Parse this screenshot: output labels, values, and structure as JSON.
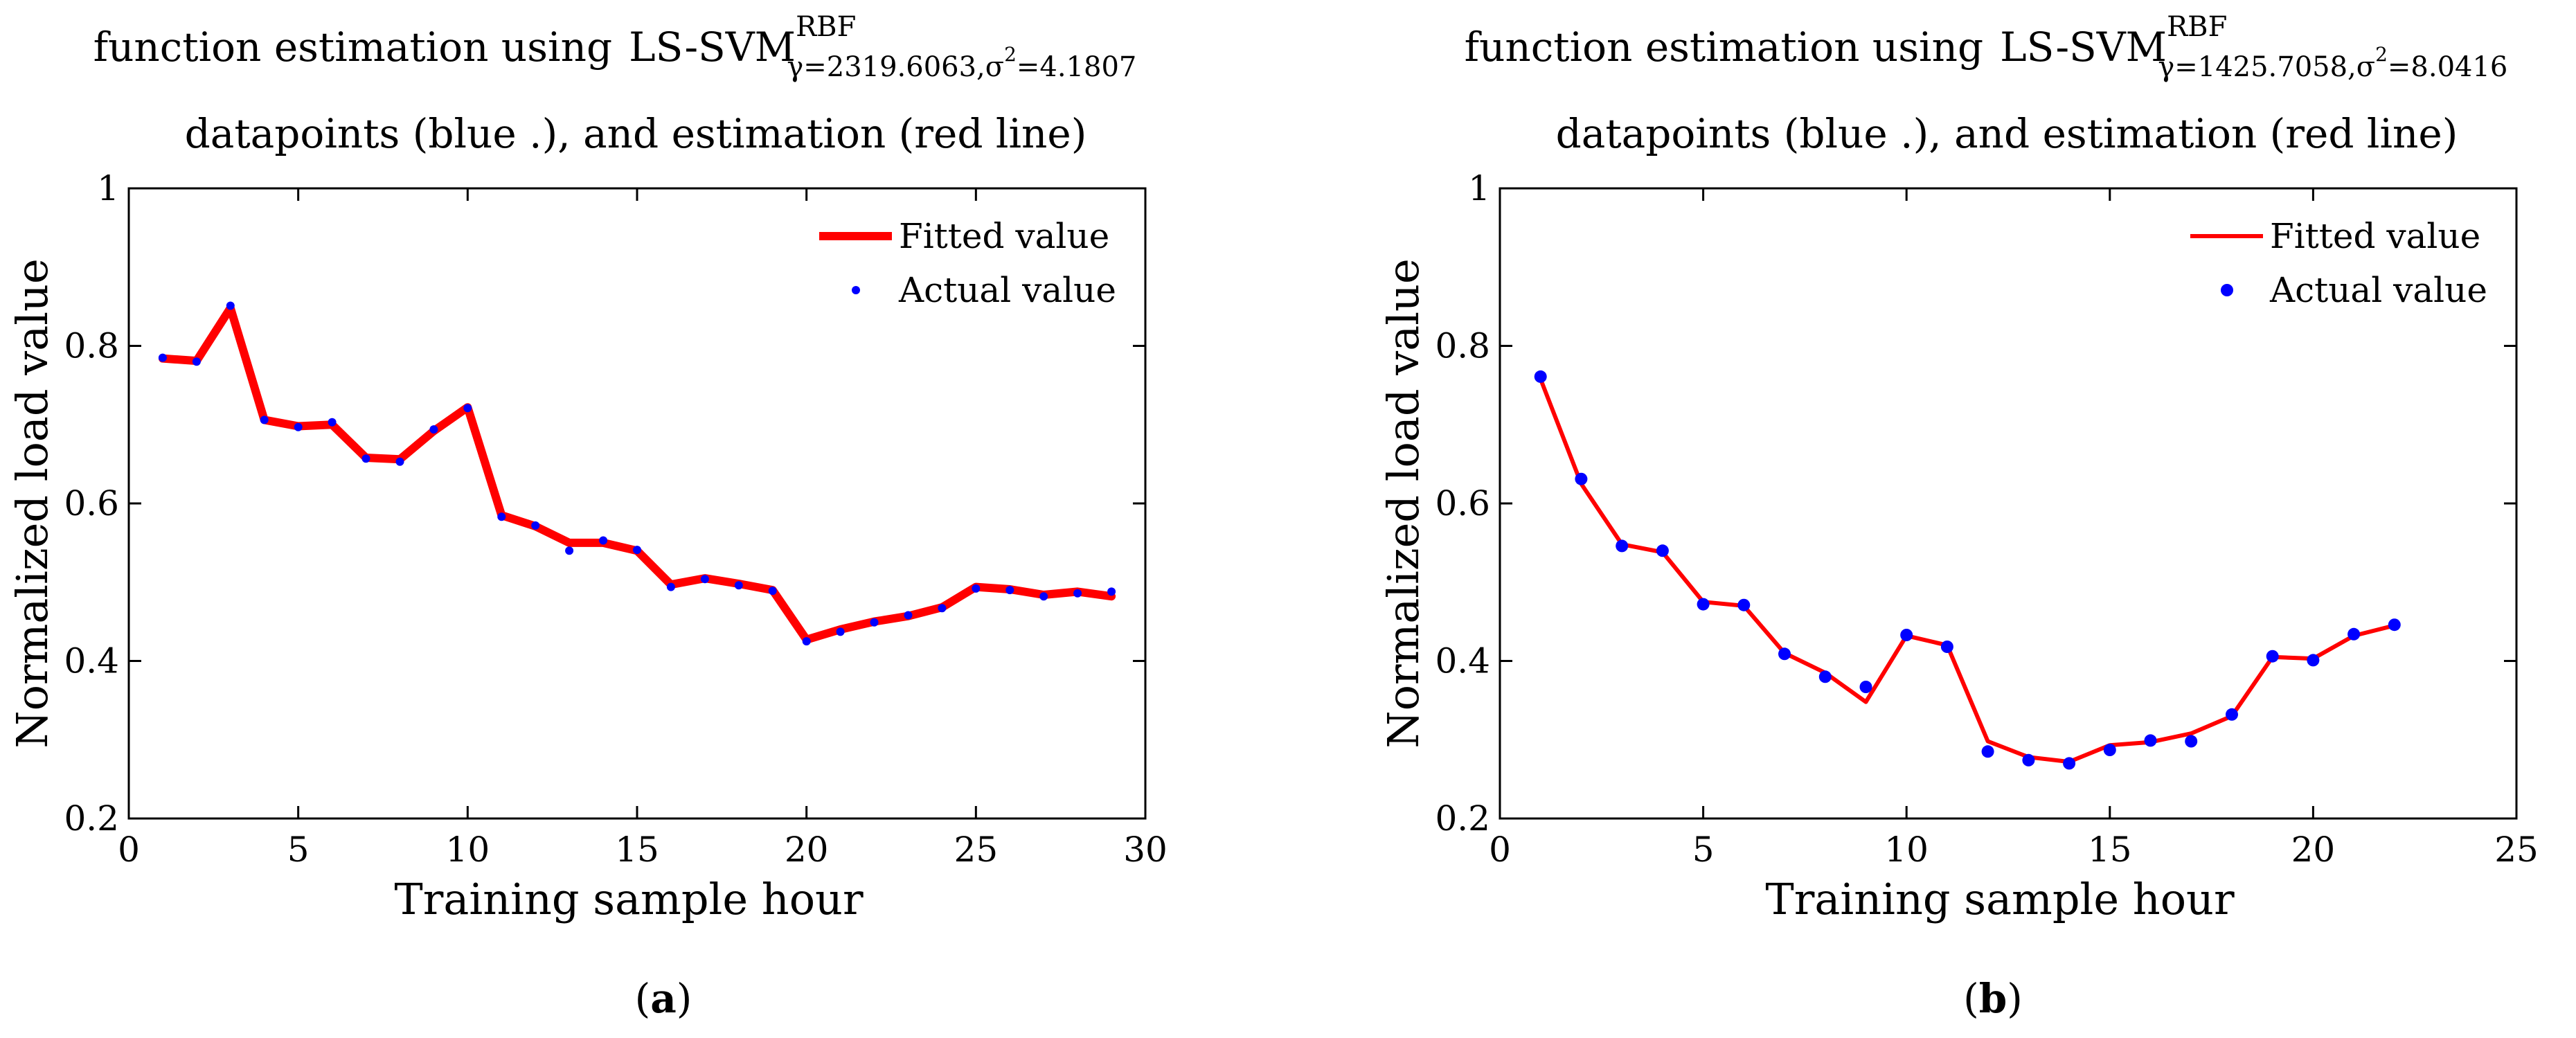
{
  "figure": {
    "background": "#ffffff",
    "colors": {
      "fitted": "#ff0000",
      "actual": "#0000ff",
      "axis": "#000000"
    }
  },
  "chart_data": [
    {
      "id": "a",
      "type": "line",
      "title_line1_prefix": "function estimation using",
      "title_model": "LS-SVM",
      "title_superscript": "RBF",
      "title_subscript": "γ=2319.6063,σ",
      "title_sigma_sup": "2",
      "title_subscript_tail": "=4.1807",
      "subtitle": "datapoints (blue .), and estimation  (red line)",
      "xlabel": "Training sample hour",
      "ylabel": "Normalized load value",
      "panel_label_open": "(",
      "panel_label": "a",
      "panel_label_close": ")",
      "xlim": [
        0,
        30
      ],
      "ylim": [
        0.2,
        1.0
      ],
      "xticks": [
        0,
        5,
        10,
        15,
        20,
        25,
        30
      ],
      "xtick_labels": [
        "0",
        "5",
        "10",
        "15",
        "20",
        "25",
        "30"
      ],
      "yticks": [
        0.2,
        0.4,
        0.6,
        0.8,
        1.0
      ],
      "ytick_labels": [
        "0.2",
        "0.4",
        "0.6",
        "0.8",
        "1"
      ],
      "grid": false,
      "legend_position": "top-right",
      "legend": [
        "Fitted value",
        "Actual value"
      ],
      "x": [
        1,
        2,
        3,
        4,
        5,
        6,
        7,
        8,
        9,
        10,
        11,
        12,
        13,
        14,
        15,
        16,
        17,
        18,
        19,
        20,
        21,
        22,
        23,
        24,
        25,
        26,
        27,
        28,
        29
      ],
      "series": [
        {
          "name": "Fitted value",
          "style": "line",
          "color": "#ff0000",
          "values": [
            0.784,
            0.781,
            0.848,
            0.706,
            0.698,
            0.7,
            0.658,
            0.656,
            0.692,
            0.722,
            0.585,
            0.571,
            0.55,
            0.55,
            0.54,
            0.497,
            0.505,
            0.498,
            0.49,
            0.427,
            0.44,
            0.45,
            0.457,
            0.468,
            0.494,
            0.491,
            0.484,
            0.488,
            0.482
          ]
        },
        {
          "name": "Actual value",
          "style": "marker",
          "color": "#0000ff",
          "values": [
            0.785,
            0.78,
            0.851,
            0.706,
            0.697,
            0.703,
            0.657,
            0.653,
            0.694,
            0.721,
            0.583,
            0.572,
            0.54,
            0.553,
            0.541,
            0.494,
            0.504,
            0.496,
            0.489,
            0.425,
            0.437,
            0.449,
            0.458,
            0.467,
            0.492,
            0.49,
            0.482,
            0.486,
            0.488
          ]
        }
      ]
    },
    {
      "id": "b",
      "type": "line",
      "title_line1_prefix": "function estimation using",
      "title_model": "LS-SVM",
      "title_superscript": "RBF",
      "title_subscript": "γ=1425.7058,σ",
      "title_sigma_sup": "2",
      "title_subscript_tail": "=8.0416",
      "subtitle": "datapoints (blue .), and estimation  (red line)",
      "xlabel": "Training sample hour",
      "ylabel": "Normalized load value",
      "panel_label_open": "(",
      "panel_label": "b",
      "panel_label_close": ")",
      "xlim": [
        0,
        25
      ],
      "ylim": [
        0.2,
        1.0
      ],
      "xticks": [
        0,
        5,
        10,
        15,
        20,
        25
      ],
      "xtick_labels": [
        "0",
        "5",
        "10",
        "15",
        "20",
        "25"
      ],
      "yticks": [
        0.2,
        0.4,
        0.6,
        0.8,
        1.0
      ],
      "ytick_labels": [
        "0.2",
        "0.4",
        "0.6",
        "0.8",
        "1"
      ],
      "grid": false,
      "legend_position": "top-right",
      "legend": [
        "Fitted value",
        "Actual value"
      ],
      "x": [
        1,
        2,
        3,
        4,
        5,
        6,
        7,
        8,
        9,
        10,
        11,
        12,
        13,
        14,
        15,
        16,
        17,
        18,
        19,
        20,
        21,
        22
      ],
      "series": [
        {
          "name": "Fitted value",
          "style": "line",
          "color": "#ff0000",
          "values": [
            0.758,
            0.625,
            0.548,
            0.538,
            0.475,
            0.47,
            0.41,
            0.385,
            0.348,
            0.432,
            0.42,
            0.298,
            0.278,
            0.272,
            0.293,
            0.297,
            0.308,
            0.33,
            0.405,
            0.403,
            0.432,
            0.445
          ]
        },
        {
          "name": "Actual value",
          "style": "marker",
          "color": "#0000ff",
          "values": [
            0.761,
            0.631,
            0.546,
            0.54,
            0.472,
            0.471,
            0.409,
            0.38,
            0.367,
            0.433,
            0.418,
            0.285,
            0.274,
            0.27,
            0.287,
            0.299,
            0.298,
            0.332,
            0.406,
            0.401,
            0.434,
            0.446
          ]
        }
      ]
    }
  ]
}
